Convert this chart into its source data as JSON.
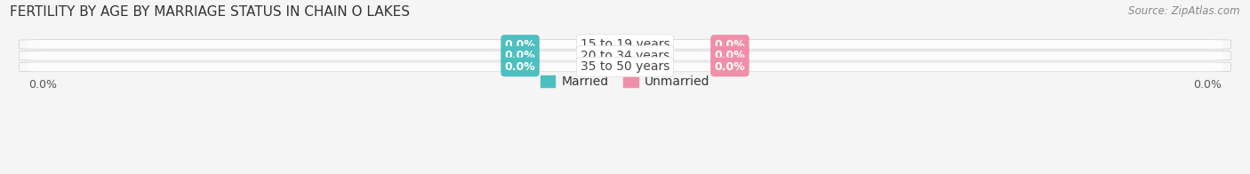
{
  "title": "FERTILITY BY AGE BY MARRIAGE STATUS IN CHAIN O LAKES",
  "source": "Source: ZipAtlas.com",
  "age_groups": [
    "15 to 19 years",
    "20 to 34 years",
    "35 to 50 years"
  ],
  "married_values": [
    0.0,
    0.0,
    0.0
  ],
  "unmarried_values": [
    0.0,
    0.0,
    0.0
  ],
  "married_color": "#4dbfbf",
  "unmarried_color": "#f090a8",
  "bar_bg_color": "#f0f0f0",
  "bar_bg_color2": "#e0e0e0",
  "bg_color": "#f5f5f5",
  "title_fontsize": 11,
  "source_fontsize": 8.5,
  "age_label_fontsize": 10,
  "val_label_fontsize": 9,
  "legend_fontsize": 10,
  "axis_label_fontsize": 9
}
